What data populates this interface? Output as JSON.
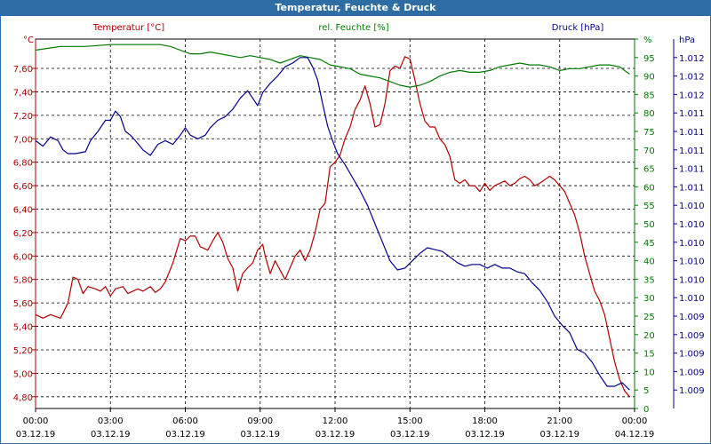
{
  "window": {
    "title": "Temperatur, Feuchte & Druck"
  },
  "colors": {
    "temperature": "#b00000",
    "humidity": "#007a00",
    "pressure": "#00008c",
    "titlebar": "#2e6da4",
    "grid": "#000000"
  },
  "chart_data": {
    "type": "line",
    "title": "Temperatur, Feuchte & Druck",
    "x_ticks": [
      {
        "time": "00:00",
        "date": "03.12.19"
      },
      {
        "time": "03:00",
        "date": "03.12.19"
      },
      {
        "time": "06:00",
        "date": "03.12.19"
      },
      {
        "time": "09:00",
        "date": "03.12.19"
      },
      {
        "time": "12:00",
        "date": "03.12.19"
      },
      {
        "time": "15:00",
        "date": "03.12.19"
      },
      {
        "time": "18:00",
        "date": "03.12.19"
      },
      {
        "time": "21:00",
        "date": "03.12.19"
      },
      {
        "time": "00:00",
        "date": "04.12.19"
      }
    ],
    "x_range_hours": [
      0,
      24
    ],
    "axes": {
      "temperature": {
        "label": "Temperatur [°C]",
        "unit": "°C",
        "range": [
          4.7,
          7.85
        ],
        "ticks": [
          4.8,
          5.0,
          5.2,
          5.4,
          5.6,
          5.8,
          6.0,
          6.2,
          6.4,
          6.6,
          6.8,
          7.0,
          7.2,
          7.4,
          7.6
        ],
        "tick_labels": [
          "4,80",
          "5,00",
          "5,20",
          "5,40",
          "5,60",
          "5,80",
          "6,00",
          "6,20",
          "6,40",
          "6,60",
          "6,80",
          "7,00",
          "7,20",
          "7,40",
          "7,60"
        ]
      },
      "humidity": {
        "label": "rel. Feuchte [%]",
        "unit": "%",
        "range": [
          0,
          100
        ],
        "ticks": [
          0,
          5,
          10,
          15,
          20,
          25,
          30,
          35,
          40,
          45,
          50,
          55,
          60,
          65,
          70,
          75,
          80,
          85,
          90,
          95,
          100
        ],
        "tick_labels": [
          "0",
          "5",
          "10",
          "15",
          "20",
          "25",
          "30",
          "35",
          "40",
          "45",
          "50",
          "55",
          "60",
          "65",
          "70",
          "75",
          "80",
          "85",
          "90",
          "95",
          "%"
        ]
      },
      "pressure": {
        "label": "Druck [hPa]",
        "unit": "hPa",
        "range": [
          0,
          20
        ],
        "ticks": [
          1,
          2,
          3,
          4,
          5,
          6,
          7,
          8,
          9,
          10,
          11,
          12,
          13,
          14,
          15,
          16,
          17,
          18,
          19
        ],
        "tick_labels": [
          "1.009",
          "1.009",
          "1.009",
          "1.009",
          "1.009",
          "1.010",
          "1.010",
          "1.010",
          "1.010",
          "1.010",
          "1.010",
          "1.011",
          "1.011",
          "1.011",
          "1.011",
          "1.011",
          "1.012",
          "1.012",
          "1.012"
        ],
        "unit_label": "hPa"
      }
    },
    "series": [
      {
        "name": "Temperatur [°C]",
        "axis": "temperature",
        "points": [
          [
            0,
            5.5
          ],
          [
            0.3,
            5.47
          ],
          [
            0.6,
            5.5
          ],
          [
            1.0,
            5.47
          ],
          [
            1.3,
            5.6
          ],
          [
            1.5,
            5.82
          ],
          [
            1.7,
            5.8
          ],
          [
            1.9,
            5.68
          ],
          [
            2.1,
            5.74
          ],
          [
            2.4,
            5.72
          ],
          [
            2.6,
            5.7
          ],
          [
            2.8,
            5.74
          ],
          [
            3.0,
            5.66
          ],
          [
            3.2,
            5.72
          ],
          [
            3.5,
            5.74
          ],
          [
            3.7,
            5.68
          ],
          [
            3.9,
            5.7
          ],
          [
            4.1,
            5.72
          ],
          [
            4.3,
            5.7
          ],
          [
            4.6,
            5.74
          ],
          [
            4.8,
            5.69
          ],
          [
            5.0,
            5.72
          ],
          [
            5.2,
            5.78
          ],
          [
            5.5,
            5.94
          ],
          [
            5.8,
            6.15
          ],
          [
            6.0,
            6.13
          ],
          [
            6.2,
            6.17
          ],
          [
            6.4,
            6.17
          ],
          [
            6.6,
            6.08
          ],
          [
            6.9,
            6.05
          ],
          [
            7.1,
            6.13
          ],
          [
            7.3,
            6.2
          ],
          [
            7.5,
            6.12
          ],
          [
            7.7,
            5.98
          ],
          [
            7.9,
            5.9
          ],
          [
            8.1,
            5.7
          ],
          [
            8.3,
            5.85
          ],
          [
            8.5,
            5.9
          ],
          [
            8.7,
            5.94
          ],
          [
            8.9,
            6.05
          ],
          [
            9.1,
            6.1
          ],
          [
            9.2,
            6.0
          ],
          [
            9.4,
            5.85
          ],
          [
            9.6,
            5.96
          ],
          [
            9.8,
            5.88
          ],
          [
            10.0,
            5.8
          ],
          [
            10.2,
            5.9
          ],
          [
            10.4,
            6.0
          ],
          [
            10.6,
            6.05
          ],
          [
            10.8,
            5.96
          ],
          [
            11.0,
            6.05
          ],
          [
            11.2,
            6.2
          ],
          [
            11.4,
            6.4
          ],
          [
            11.6,
            6.45
          ],
          [
            11.8,
            6.76
          ],
          [
            12.0,
            6.8
          ],
          [
            12.2,
            6.86
          ],
          [
            12.4,
            7.0
          ],
          [
            12.6,
            7.1
          ],
          [
            12.8,
            7.25
          ],
          [
            13.0,
            7.33
          ],
          [
            13.2,
            7.45
          ],
          [
            13.4,
            7.3
          ],
          [
            13.6,
            7.1
          ],
          [
            13.8,
            7.12
          ],
          [
            14.0,
            7.3
          ],
          [
            14.2,
            7.58
          ],
          [
            14.4,
            7.62
          ],
          [
            14.6,
            7.6
          ],
          [
            14.8,
            7.7
          ],
          [
            15.0,
            7.68
          ],
          [
            15.2,
            7.5
          ],
          [
            15.4,
            7.3
          ],
          [
            15.6,
            7.15
          ],
          [
            15.8,
            7.1
          ],
          [
            16.0,
            7.1
          ],
          [
            16.2,
            7.0
          ],
          [
            16.4,
            6.95
          ],
          [
            16.6,
            6.85
          ],
          [
            16.8,
            6.65
          ],
          [
            17.0,
            6.62
          ],
          [
            17.2,
            6.65
          ],
          [
            17.4,
            6.6
          ],
          [
            17.6,
            6.6
          ],
          [
            17.8,
            6.55
          ],
          [
            18.0,
            6.62
          ],
          [
            18.2,
            6.56
          ],
          [
            18.4,
            6.6
          ],
          [
            18.6,
            6.62
          ],
          [
            18.8,
            6.64
          ],
          [
            19.0,
            6.6
          ],
          [
            19.2,
            6.62
          ],
          [
            19.4,
            6.66
          ],
          [
            19.6,
            6.68
          ],
          [
            19.8,
            6.65
          ],
          [
            20.0,
            6.6
          ],
          [
            20.2,
            6.62
          ],
          [
            20.4,
            6.65
          ],
          [
            20.6,
            6.68
          ],
          [
            20.8,
            6.65
          ],
          [
            21.0,
            6.6
          ],
          [
            21.2,
            6.55
          ],
          [
            21.4,
            6.45
          ],
          [
            21.6,
            6.35
          ],
          [
            21.8,
            6.2
          ],
          [
            22.0,
            6.0
          ],
          [
            22.2,
            5.85
          ],
          [
            22.4,
            5.7
          ],
          [
            22.6,
            5.62
          ],
          [
            22.8,
            5.5
          ],
          [
            23.0,
            5.3
          ],
          [
            23.2,
            5.1
          ],
          [
            23.4,
            4.95
          ],
          [
            23.6,
            4.85
          ],
          [
            23.8,
            4.8
          ]
        ]
      },
      {
        "name": "rel. Feuchte [%]",
        "axis": "humidity",
        "points": [
          [
            0,
            97
          ],
          [
            0.5,
            97.5
          ],
          [
            1.0,
            98
          ],
          [
            2.0,
            98
          ],
          [
            3.0,
            98.5
          ],
          [
            4.0,
            98.5
          ],
          [
            5.0,
            98.5
          ],
          [
            5.4,
            98
          ],
          [
            5.8,
            97
          ],
          [
            6.2,
            96
          ],
          [
            6.6,
            96
          ],
          [
            7.0,
            96.5
          ],
          [
            7.4,
            96
          ],
          [
            7.8,
            95.5
          ],
          [
            8.2,
            95
          ],
          [
            8.6,
            95.5
          ],
          [
            9.0,
            95
          ],
          [
            9.4,
            94.5
          ],
          [
            9.8,
            93.5
          ],
          [
            10.2,
            94.5
          ],
          [
            10.6,
            95.5
          ],
          [
            11.0,
            95
          ],
          [
            11.4,
            94.5
          ],
          [
            11.8,
            93
          ],
          [
            12.2,
            92.5
          ],
          [
            12.6,
            92
          ],
          [
            13.0,
            90.5
          ],
          [
            13.4,
            90
          ],
          [
            13.8,
            89.5
          ],
          [
            14.2,
            88.5
          ],
          [
            14.6,
            87.5
          ],
          [
            15.0,
            87
          ],
          [
            15.4,
            87.5
          ],
          [
            15.8,
            88.5
          ],
          [
            16.2,
            90
          ],
          [
            16.6,
            91
          ],
          [
            17.0,
            91.5
          ],
          [
            17.4,
            91
          ],
          [
            17.8,
            91
          ],
          [
            18.2,
            91.5
          ],
          [
            18.6,
            92.5
          ],
          [
            19.0,
            93
          ],
          [
            19.4,
            93.5
          ],
          [
            19.8,
            93
          ],
          [
            20.2,
            93
          ],
          [
            20.6,
            92.5
          ],
          [
            21.0,
            91.5
          ],
          [
            21.4,
            92
          ],
          [
            21.8,
            92
          ],
          [
            22.2,
            92.5
          ],
          [
            22.6,
            93
          ],
          [
            23.0,
            93
          ],
          [
            23.4,
            92.5
          ],
          [
            23.8,
            90.5
          ]
        ]
      },
      {
        "name": "Druck [hPa]",
        "axis": "pressure",
        "points": [
          [
            0,
            14.5
          ],
          [
            0.3,
            14.2
          ],
          [
            0.6,
            14.7
          ],
          [
            0.9,
            14.5
          ],
          [
            1.1,
            14.0
          ],
          [
            1.3,
            13.8
          ],
          [
            1.6,
            13.8
          ],
          [
            2.0,
            13.9
          ],
          [
            2.2,
            14.5
          ],
          [
            2.5,
            15.0
          ],
          [
            2.8,
            15.6
          ],
          [
            3.0,
            15.6
          ],
          [
            3.2,
            16.1
          ],
          [
            3.4,
            15.8
          ],
          [
            3.6,
            15.0
          ],
          [
            3.8,
            14.8
          ],
          [
            4.0,
            14.5
          ],
          [
            4.3,
            14.0
          ],
          [
            4.6,
            13.7
          ],
          [
            4.9,
            14.3
          ],
          [
            5.2,
            14.5
          ],
          [
            5.5,
            14.3
          ],
          [
            5.8,
            14.8
          ],
          [
            6.0,
            15.2
          ],
          [
            6.2,
            14.8
          ],
          [
            6.5,
            14.6
          ],
          [
            6.8,
            14.8
          ],
          [
            7.0,
            15.2
          ],
          [
            7.3,
            15.6
          ],
          [
            7.6,
            15.8
          ],
          [
            7.9,
            16.2
          ],
          [
            8.2,
            16.8
          ],
          [
            8.5,
            17.2
          ],
          [
            8.7,
            16.8
          ],
          [
            8.9,
            16.4
          ],
          [
            9.1,
            17.1
          ],
          [
            9.4,
            17.6
          ],
          [
            9.7,
            18.0
          ],
          [
            10.0,
            18.5
          ],
          [
            10.3,
            18.7
          ],
          [
            10.6,
            19.0
          ],
          [
            10.9,
            19.0
          ],
          [
            11.1,
            18.5
          ],
          [
            11.3,
            17.8
          ],
          [
            11.5,
            16.5
          ],
          [
            11.7,
            15.3
          ],
          [
            11.9,
            14.5
          ],
          [
            12.1,
            13.8
          ],
          [
            12.4,
            13.2
          ],
          [
            12.7,
            12.5
          ],
          [
            13.0,
            11.8
          ],
          [
            13.3,
            11.0
          ],
          [
            13.6,
            10.0
          ],
          [
            13.9,
            9.0
          ],
          [
            14.2,
            8.0
          ],
          [
            14.5,
            7.5
          ],
          [
            14.8,
            7.6
          ],
          [
            15.1,
            8.0
          ],
          [
            15.4,
            8.4
          ],
          [
            15.7,
            8.7
          ],
          [
            16.0,
            8.6
          ],
          [
            16.3,
            8.5
          ],
          [
            16.6,
            8.2
          ],
          [
            16.9,
            7.9
          ],
          [
            17.2,
            7.7
          ],
          [
            17.5,
            7.8
          ],
          [
            17.8,
            7.8
          ],
          [
            18.1,
            7.6
          ],
          [
            18.4,
            7.8
          ],
          [
            18.7,
            7.6
          ],
          [
            19.0,
            7.6
          ],
          [
            19.3,
            7.4
          ],
          [
            19.6,
            7.3
          ],
          [
            19.9,
            6.8
          ],
          [
            20.2,
            6.4
          ],
          [
            20.5,
            5.8
          ],
          [
            20.8,
            5.0
          ],
          [
            21.1,
            4.5
          ],
          [
            21.4,
            4.1
          ],
          [
            21.7,
            3.2
          ],
          [
            22.0,
            3.0
          ],
          [
            22.3,
            2.5
          ],
          [
            22.6,
            1.8
          ],
          [
            22.9,
            1.2
          ],
          [
            23.2,
            1.2
          ],
          [
            23.5,
            1.4
          ],
          [
            23.8,
            1.0
          ]
        ]
      }
    ],
    "grid": true
  }
}
